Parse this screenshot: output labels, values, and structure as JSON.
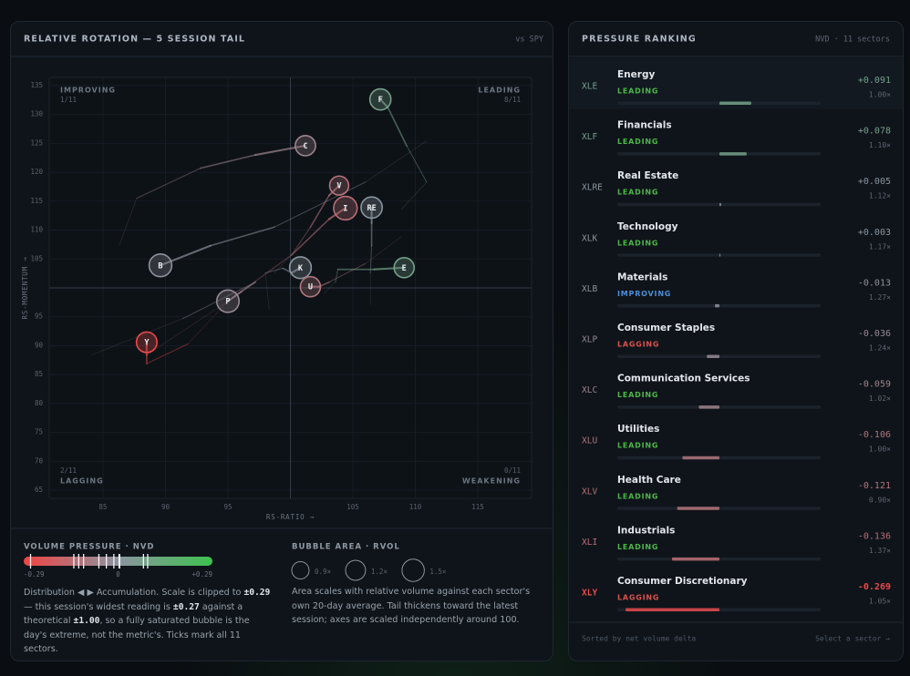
{
  "rotation_panel": {
    "title": "RELATIVE ROTATION — 5 SESSION TAIL",
    "benchmark": "vs SPY"
  },
  "chart_data": {
    "type": "scatter",
    "x_label": "RS-RATIO →",
    "y_label": "RS-MOMENTUM →",
    "xlim": [
      80.7,
      119.3
    ],
    "ylim": [
      63.6,
      136.4
    ],
    "xticks": [
      85,
      90,
      95,
      105,
      110,
      115
    ],
    "yticks": [
      65,
      70,
      75,
      80,
      85,
      90,
      95,
      105,
      110,
      115,
      120,
      125,
      130,
      135
    ],
    "grid": true,
    "quadrants": [
      {
        "name": "IMPROVING",
        "count": "1/11"
      },
      {
        "name": "LEADING",
        "count": "8/11"
      },
      {
        "name": "LAGGING",
        "count": "2/11"
      },
      {
        "name": "WEAKENING",
        "count": "0/11"
      }
    ],
    "series": [
      {
        "name": "E",
        "x": [
          102.7,
          103.6,
          103.8,
          106.7,
          109.1
        ],
        "y": [
          99.1,
          101.0,
          103.2,
          103.2,
          103.5
        ]
      },
      {
        "name": "F",
        "x": [
          108.9,
          110.9,
          109.3,
          107.8,
          107.2
        ],
        "y": [
          113.6,
          118.3,
          124.6,
          131.2,
          132.6
        ]
      },
      {
        "name": "RE",
        "x": [
          106.4,
          106.4,
          106.5,
          106.5,
          106.5
        ],
        "y": [
          97.1,
          102.6,
          107.3,
          111.2,
          113.9
        ]
      },
      {
        "name": "K",
        "x": [
          98.3,
          98.0,
          99.4,
          100.1,
          100.8
        ],
        "y": [
          96.3,
          102.6,
          103.4,
          102.6,
          103.5
        ]
      },
      {
        "name": "B",
        "x": [
          110.9,
          106.0,
          98.7,
          93.6,
          89.6
        ],
        "y": [
          125.4,
          118.3,
          110.5,
          107.3,
          103.9
        ]
      },
      {
        "name": "P",
        "x": [
          84.1,
          91.4,
          97.2,
          96.1,
          95.0
        ],
        "y": [
          88.4,
          94.7,
          101.0,
          99.4,
          97.7
        ]
      },
      {
        "name": "C",
        "x": [
          86.3,
          87.7,
          92.8,
          97.2,
          101.2
        ],
        "y": [
          107.3,
          115.5,
          120.7,
          123.0,
          124.6
        ]
      },
      {
        "name": "U",
        "x": [
          108.9,
          106.0,
          103.1,
          102.3,
          101.6
        ],
        "y": [
          108.9,
          104.2,
          101.0,
          100.2,
          100.2
        ]
      },
      {
        "name": "V",
        "x": [
          98.7,
          100.1,
          101.6,
          103.1,
          103.9
        ],
        "y": [
          102.6,
          105.7,
          110.5,
          116.0,
          117.7
        ]
      },
      {
        "name": "I",
        "x": [
          88.5,
          95.0,
          100.1,
          103.1,
          104.4
        ],
        "y": [
          88.4,
          97.7,
          105.7,
          111.9,
          113.8
        ]
      },
      {
        "name": "Y",
        "x": [
          95.0,
          91.8,
          88.5,
          88.5,
          88.5
        ],
        "y": [
          97.7,
          90.3,
          86.9,
          88.4,
          90.6
        ]
      }
    ]
  },
  "pressure_scale": {
    "title": "VOLUME PRESSURE · NVD",
    "ticks": [
      {
        "value": -0.29,
        "label": "-0.29"
      },
      0,
      {
        "value": 0.29,
        "label": "+0.29"
      }
    ],
    "colors": {
      "negative": "#ef4444",
      "neutral": "#8b94a0",
      "positive": "#3ec24f"
    },
    "note_parts": [
      "Distribution ◀ ▶ Accumulation. Scale is clipped to ",
      "±0.29",
      " — this session's widest reading is ",
      "±0.27",
      " against a theoretical ",
      "±1.00",
      ", so a fully saturated bubble is the day's extreme, not the metric's. Ticks mark all 11 sectors."
    ]
  },
  "bubble_legend": {
    "title": "BUBBLE AREA · RVOL",
    "sizes": [
      {
        "value": 0.9,
        "label": "0.9×"
      },
      {
        "value": 1.2,
        "label": "1.2×"
      },
      {
        "value": 1.5,
        "label": "1.5×"
      }
    ],
    "note": "Area scales with relative volume against each sector's own 20-day average. Tail thickens toward the latest session; axes are scaled independently around 100."
  },
  "ranking": {
    "title": "PRESSURE RANKING",
    "subtitle": "NVD · 11 sectors",
    "status_colors": {
      "LEADING": "#4cb848",
      "IMPROVING": "#4a8fd9",
      "LAGGING": "#d9534f",
      "WEAKENING": "#d9a23f"
    },
    "rows": [
      {
        "ticker": "XLE",
        "name": "Energy",
        "status": "LEADING",
        "pressure": 0.091,
        "pressure_label": "+0.091",
        "rvol": 1.0,
        "rvol_label": "1.00×"
      },
      {
        "ticker": "XLF",
        "name": "Financials",
        "status": "LEADING",
        "pressure": 0.078,
        "pressure_label": "+0.078",
        "rvol": 1.1,
        "rvol_label": "1.10×"
      },
      {
        "ticker": "XLRE",
        "name": "Real Estate",
        "status": "LEADING",
        "pressure": 0.005,
        "pressure_label": "+0.005",
        "rvol": 1.12,
        "rvol_label": "1.12×"
      },
      {
        "ticker": "XLK",
        "name": "Technology",
        "status": "LEADING",
        "pressure": 0.003,
        "pressure_label": "+0.003",
        "rvol": 1.17,
        "rvol_label": "1.17×"
      },
      {
        "ticker": "XLB",
        "name": "Materials",
        "status": "IMPROVING",
        "pressure": -0.013,
        "pressure_label": "-0.013",
        "rvol": 1.27,
        "rvol_label": "1.27×"
      },
      {
        "ticker": "XLP",
        "name": "Consumer Staples",
        "status": "LAGGING",
        "pressure": -0.036,
        "pressure_label": "-0.036",
        "rvol": 1.24,
        "rvol_label": "1.24×"
      },
      {
        "ticker": "XLC",
        "name": "Communication Services",
        "status": "LEADING",
        "pressure": -0.059,
        "pressure_label": "-0.059",
        "rvol": 1.02,
        "rvol_label": "1.02×"
      },
      {
        "ticker": "XLU",
        "name": "Utilities",
        "status": "LEADING",
        "pressure": -0.106,
        "pressure_label": "-0.106",
        "rvol": 1.0,
        "rvol_label": "1.00×"
      },
      {
        "ticker": "XLV",
        "name": "Health Care",
        "status": "LEADING",
        "pressure": -0.121,
        "pressure_label": "-0.121",
        "rvol": 0.9,
        "rvol_label": "0.90×"
      },
      {
        "ticker": "XLI",
        "name": "Industrials",
        "status": "LEADING",
        "pressure": -0.136,
        "pressure_label": "-0.136",
        "rvol": 1.37,
        "rvol_label": "1.37×"
      },
      {
        "ticker": "XLY",
        "name": "Consumer Discretionary",
        "status": "LAGGING",
        "pressure": -0.269,
        "pressure_label": "-0.269",
        "rvol": 1.05,
        "rvol_label": "1.05×"
      }
    ],
    "footer_left": "Sorted by net volume delta",
    "footer_right": "Select a sector →"
  }
}
